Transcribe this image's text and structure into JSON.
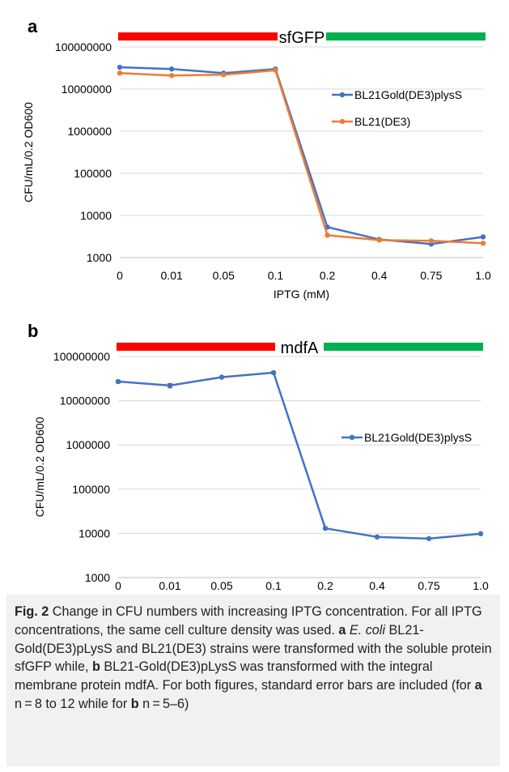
{
  "chart_data": [
    {
      "panel": "a",
      "type": "line",
      "title": "",
      "banner_label": "sfGFP",
      "x_categories": [
        "0",
        "0.01",
        "0.05",
        "0.1",
        "0.2",
        "0.4",
        "0.75",
        "1.0"
      ],
      "xlabel": "IPTG (mM)",
      "ylabel": "CFU/mL/0.2 OD600",
      "yscale": "log",
      "ylim": [
        1000,
        100000000
      ],
      "y_ticks": [
        "1000",
        "10000",
        "100000",
        "1000000",
        "10000000",
        "100000000"
      ],
      "legend_placement": "right",
      "series": [
        {
          "name": "BL21Gold(DE3)plysS",
          "color": "#4472c4",
          "values": [
            33000000,
            30000000,
            24000000,
            30000000,
            5300,
            2700,
            2100,
            3100
          ]
        },
        {
          "name": "BL21(DE3)",
          "color": "#ed7d31",
          "values": [
            24000000,
            21000000,
            22000000,
            28000000,
            3400,
            2600,
            2500,
            2200
          ]
        }
      ],
      "induction_bars": [
        {
          "color": "#ff0000",
          "from": "0",
          "to": "0.1"
        },
        {
          "color": "#00b050",
          "from": "0.2",
          "to": "1.0"
        }
      ]
    },
    {
      "panel": "b",
      "type": "line",
      "title": "",
      "banner_label": "mdfA",
      "x_categories": [
        "0",
        "0.01",
        "0.05",
        "0.1",
        "0.2",
        "0.4",
        "0.75",
        "1.0"
      ],
      "xlabel": "IPTG (mM)",
      "ylabel": "CFU/mL/0.2 OD600",
      "yscale": "log",
      "ylim": [
        1000,
        100000000
      ],
      "y_ticks": [
        "1000",
        "10000",
        "100000",
        "1000000",
        "10000000",
        "100000000"
      ],
      "legend_placement": "right",
      "series": [
        {
          "name": "BL21Gold(DE3)plysS",
          "color": "#4472c4",
          "values": [
            27000000,
            22000000,
            34000000,
            43000000,
            13000,
            8300,
            7600,
            9800
          ],
          "errors": [
            2000000,
            2500000,
            1000000,
            3000000,
            0,
            0,
            0,
            0
          ]
        }
      ],
      "induction_bars": [
        {
          "color": "#ff0000",
          "from": "0",
          "to": "0.1"
        },
        {
          "color": "#00b050",
          "from": "0.2",
          "to": "1.0"
        }
      ]
    }
  ],
  "caption": {
    "fig_label": "Fig. 2",
    "p1": " Change in CFU numbers with increasing IPTG concentration. For all IPTG concentrations, the same cell culture density was used. ",
    "a1": "a",
    "species": "E. coli",
    "p2": " BL21-Gold(DE3)pLysS and BL21(DE3) strains were transformed with the soluble protein sfGFP while, ",
    "b1": "b",
    "p3": " BL21-Gold(DE3)pLysS was transformed with the integral membrane protein mdfA. For both figures, standard error bars are included (for ",
    "a2": "a",
    "p4": " n = 8 to 12 while for ",
    "b2": "b",
    "p5": " n = 5–6)"
  }
}
